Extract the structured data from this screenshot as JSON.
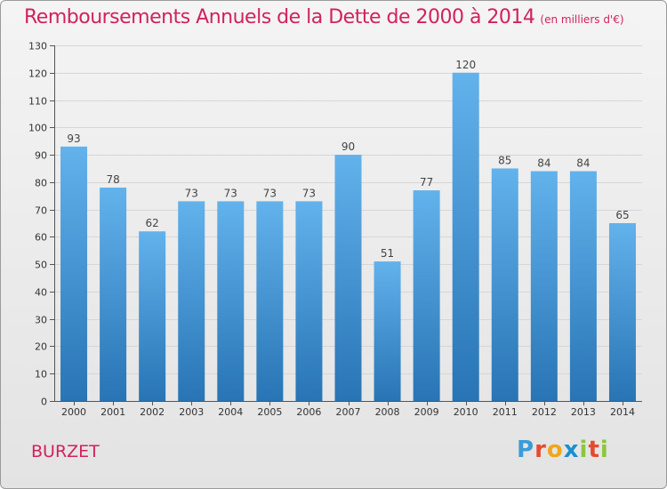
{
  "header": {
    "title": "Remboursements Annuels de la Dette de 2000 à 2014",
    "unit": "(en milliers d'€)"
  },
  "footer": {
    "commune": "BURZET",
    "logo_text": "Proxiti",
    "logo_colors": [
      "#3a9bd8",
      "#e64a2e",
      "#f0a51c",
      "#1a8fd0",
      "#8cc63f",
      "#e64a2e",
      "#8cc63f"
    ]
  },
  "colors": {
    "title": "#d2225c",
    "bar_top": "#62b2ec",
    "bar_bottom": "#2874b5",
    "grid": "#d6d6d6",
    "axis": "#555555"
  },
  "chart_data": {
    "type": "bar",
    "categories": [
      "2000",
      "2001",
      "2002",
      "2003",
      "2004",
      "2005",
      "2006",
      "2007",
      "2008",
      "2009",
      "2010",
      "2011",
      "2012",
      "2013",
      "2014"
    ],
    "values": [
      93,
      78,
      62,
      73,
      73,
      73,
      73,
      90,
      51,
      77,
      120,
      85,
      84,
      84,
      65
    ],
    "ylim": [
      0,
      130
    ],
    "yticks": [
      0,
      10,
      20,
      30,
      40,
      50,
      60,
      70,
      80,
      90,
      100,
      110,
      120,
      130
    ],
    "grid": true,
    "data_labels": true,
    "legend": false
  }
}
